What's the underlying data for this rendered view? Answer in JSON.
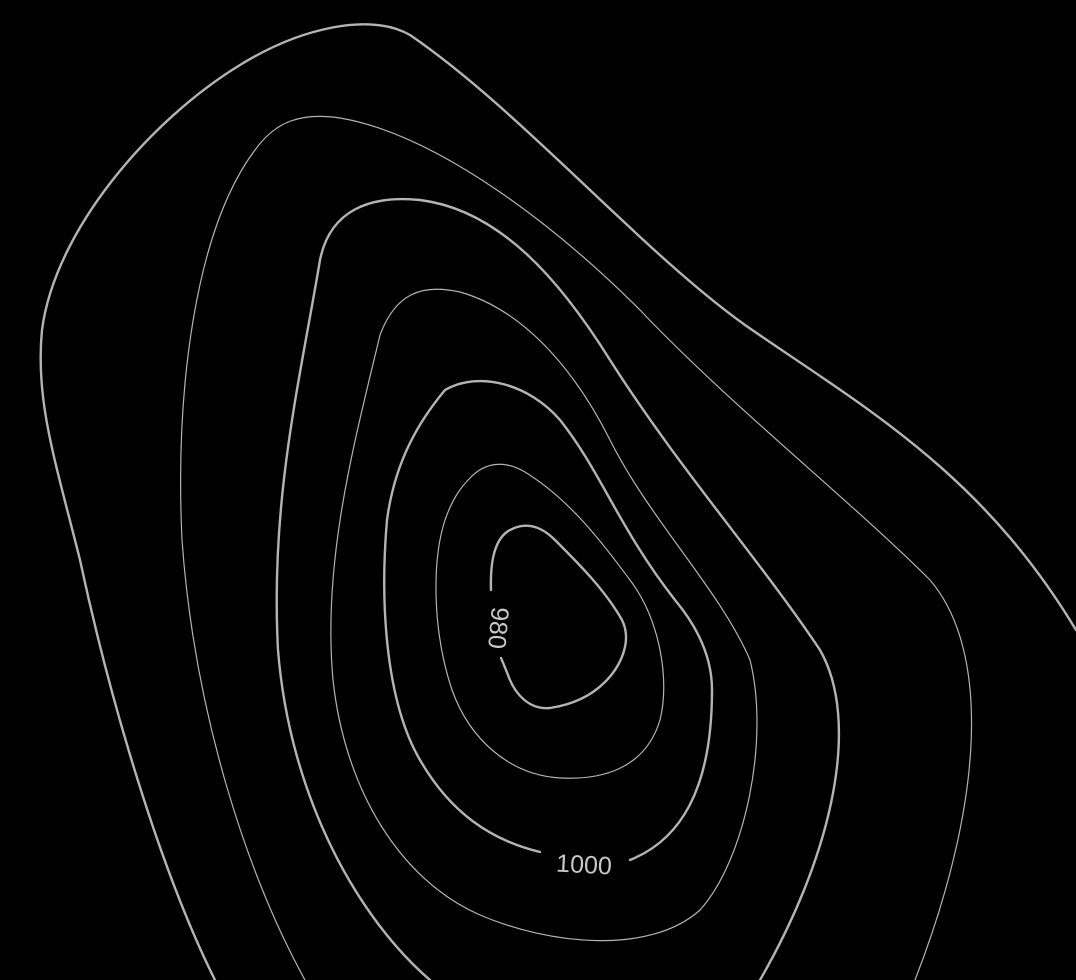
{
  "colors": {
    "background": "#000000",
    "contour_line": "#b4b4b4",
    "label_text": "#c8c8c8"
  },
  "contour_labels": {
    "inner": "980",
    "mid": "1000"
  }
}
